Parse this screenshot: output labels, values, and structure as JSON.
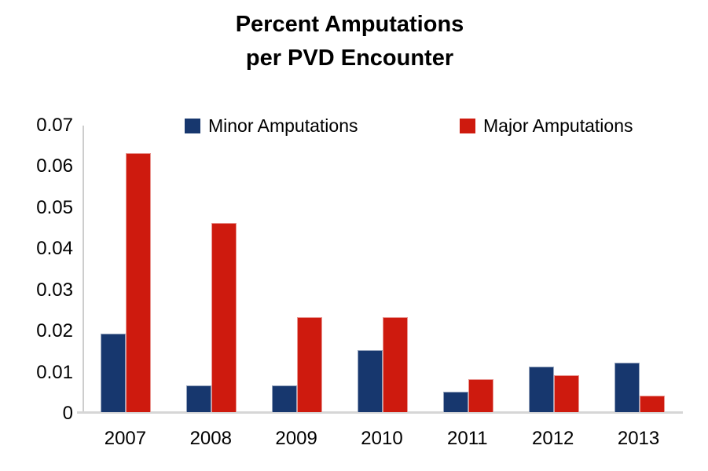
{
  "chart_data": {
    "type": "bar",
    "title": "Percent Amputations per PVD Encounter",
    "title_lines": [
      "Percent Amputations",
      "per PVD Encounter"
    ],
    "categories": [
      "2007",
      "2008",
      "2009",
      "2010",
      "2011",
      "2012",
      "2013"
    ],
    "series": [
      {
        "name": "Minor Amputations",
        "color": "#17376E",
        "values": [
          0.019,
          0.0065,
          0.0065,
          0.015,
          0.005,
          0.011,
          0.012
        ]
      },
      {
        "name": "Major Amputations",
        "color": "#CE1A0E",
        "values": [
          0.063,
          0.046,
          0.023,
          0.023,
          0.008,
          0.009,
          0.004
        ]
      }
    ],
    "xlabel": "",
    "ylabel": "",
    "ylim": [
      0,
      0.07
    ],
    "ytick_values": [
      0,
      0.01,
      0.02,
      0.03,
      0.04,
      0.05,
      0.06,
      0.07
    ],
    "ytick_labels": [
      "0",
      "0.01",
      "0.02",
      "0.03",
      "0.04",
      "0.05",
      "0.06",
      "0.07"
    ],
    "grid": false,
    "legend_position": "top"
  },
  "colors": {
    "background": "#FFFFFF",
    "axis": "#CDCDCD",
    "baseline": "#D6D6D6",
    "text": "#000000",
    "minor_series": "#17376E",
    "major_series": "#CE1A0E"
  }
}
